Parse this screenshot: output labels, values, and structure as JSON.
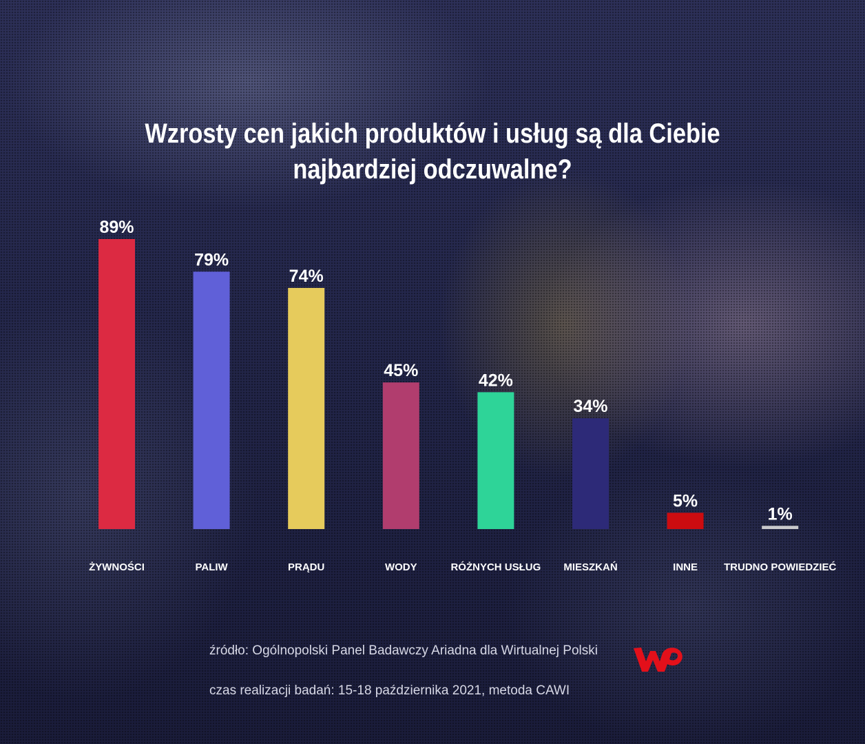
{
  "chart_data": {
    "type": "bar",
    "title": "Wzrosty cen jakich produktów i usług są dla Ciebie najbardziej odczuwalne?",
    "title_lines": [
      "Wzrosty cen jakich produktów i usług są dla Ciebie",
      "najbardziej odczuwalne?"
    ],
    "categories": [
      "ŻYWNOŚCI",
      "PALIW",
      "PRĄDU",
      "WODY",
      "RÓŻNYCH USŁUG",
      "MIESZKAŃ",
      "INNE",
      "TRUDNO POWIEDZIEĆ"
    ],
    "values": [
      89,
      79,
      74,
      45,
      42,
      34,
      5,
      1
    ],
    "value_labels": [
      "89%",
      "79%",
      "74%",
      "45%",
      "42%",
      "34%",
      "5%",
      "1%"
    ],
    "unit": "%",
    "colors": [
      "#dc2a42",
      "#6060d8",
      "#e6cb5c",
      "#b13d6e",
      "#2ed498",
      "#2d2a78",
      "#cc0c10",
      "#c8c8cc"
    ],
    "ylim": [
      0,
      89
    ],
    "grid": false,
    "legend": "none"
  },
  "footer": {
    "source": "źródło: Ogólnopolski Panel Badawczy Ariadna dla Wirtualnej Polski",
    "method": "czas realizacji badań: 15-18 października 2021, metoda CAWI"
  },
  "brand": {
    "logo": "wp-logo",
    "color": "#e3101a"
  }
}
